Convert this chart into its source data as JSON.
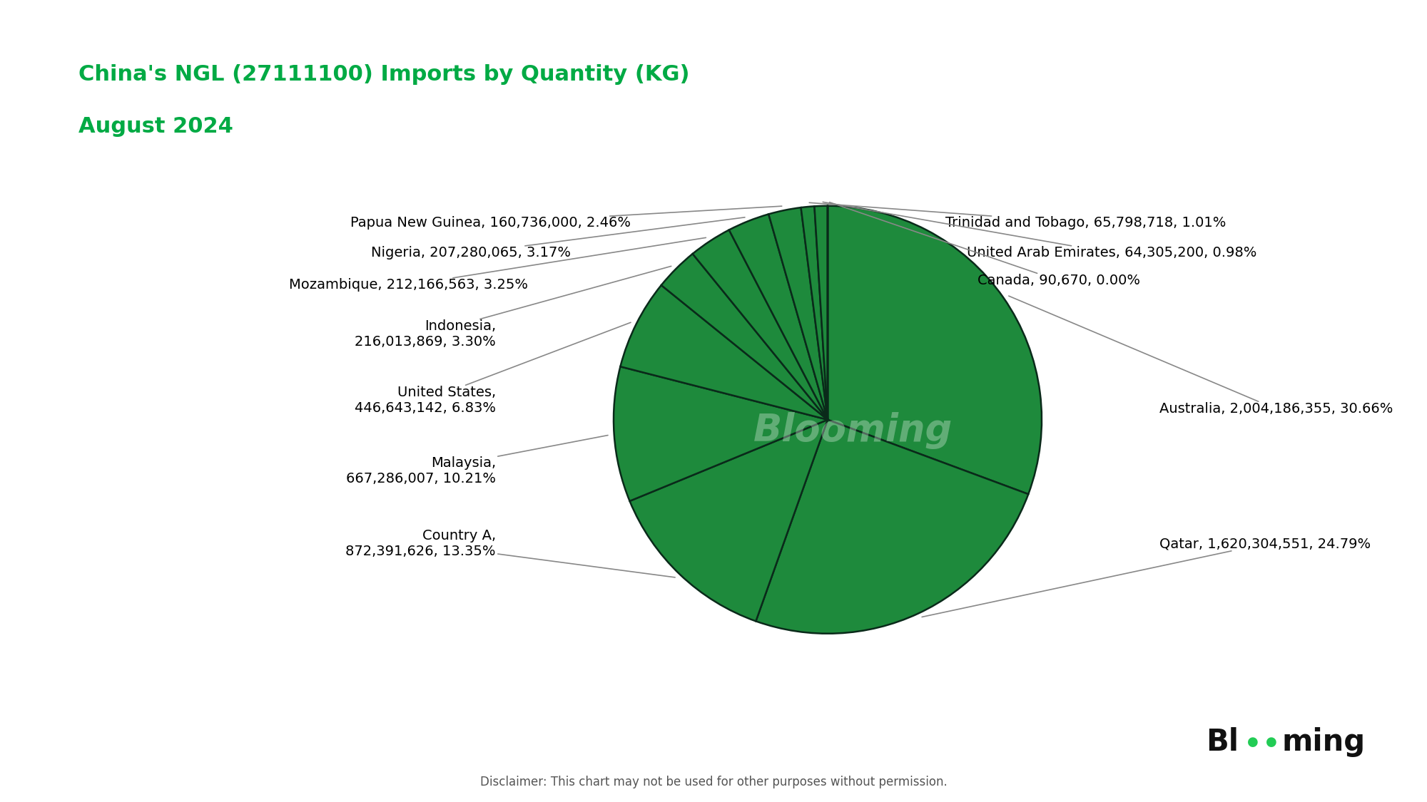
{
  "title_line1": "China's NGL (27111100) Imports by Quantity (KG)",
  "title_line2": "August 2024",
  "title_color": "#00aa44",
  "background_color": "#ffffff",
  "disclaimer": "Disclaimer: This chart may not be used for other purposes without permission.",
  "watermark": "Blooming",
  "pie_color": "#1e8a3c",
  "pie_edge_color": "#0a2a1a",
  "categories": [
    "Australia",
    "Qatar",
    "Country A",
    "Malaysia",
    "United States",
    "Indonesia",
    "Mozambique",
    "Nigeria",
    "Papua New Guinea",
    "Trinidad and Tobago",
    "United Arab Emirates",
    "Canada"
  ],
  "values": [
    2004186355,
    1620304551,
    872391626,
    667286007,
    446643142,
    216013869,
    212166563,
    207280065,
    160736000,
    65798718,
    64305200,
    90670
  ],
  "labels": [
    "Australia, 2,004,186,355, 30.66%",
    "Qatar, 1,620,304,551, 24.79%",
    "Country A,\n872,391,626, 13.35%",
    "Malaysia,\n667,286,007, 10.21%",
    "United States,\n446,643,142, 6.83%",
    "Indonesia,\n216,013,869, 3.30%",
    "Mozambique, 212,166,563, 3.25%",
    "Nigeria, 207,280,065, 3.17%",
    "Papua New Guinea, 160,736,000, 2.46%",
    "Trinidad and Tobago, 65,798,718, 1.01%",
    "United Arab Emirates, 64,305,200, 0.98%",
    "Canada, 90,670, 0.00%"
  ],
  "label_fontsize": 14,
  "title_fontsize": 22,
  "figsize": [
    20,
    11.25
  ]
}
